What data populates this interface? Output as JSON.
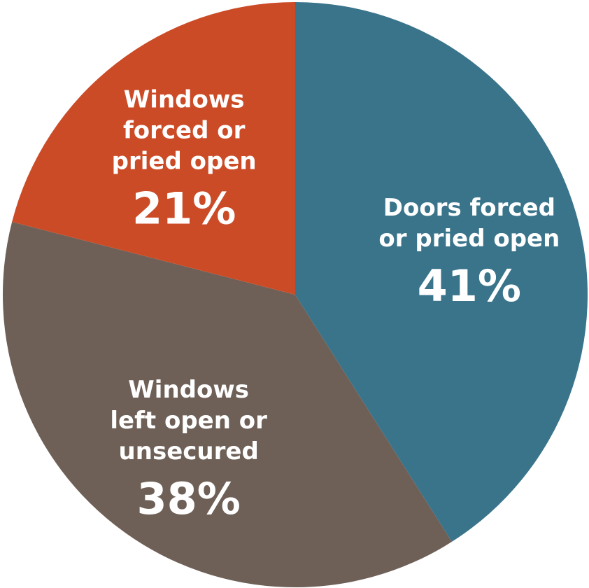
{
  "chart_data": {
    "type": "pie",
    "slices": [
      {
        "category": "Doors forced or pried open",
        "label_lines": [
          "Doors forced",
          "or pried open"
        ],
        "value": 41,
        "value_label": "41%",
        "color": "#39748b"
      },
      {
        "category": "Windows left open or unsecured",
        "label_lines": [
          "Windows",
          "left open or",
          "unsecured"
        ],
        "value": 38,
        "value_label": "38%",
        "color": "#6e6057"
      },
      {
        "category": "Windows forced or pried open",
        "label_lines": [
          "Windows",
          "forced or",
          "pried open"
        ],
        "value": 21,
        "value_label": "21%",
        "color": "#cc4b27"
      }
    ],
    "start": "12 o'clock",
    "direction": "clockwise"
  }
}
